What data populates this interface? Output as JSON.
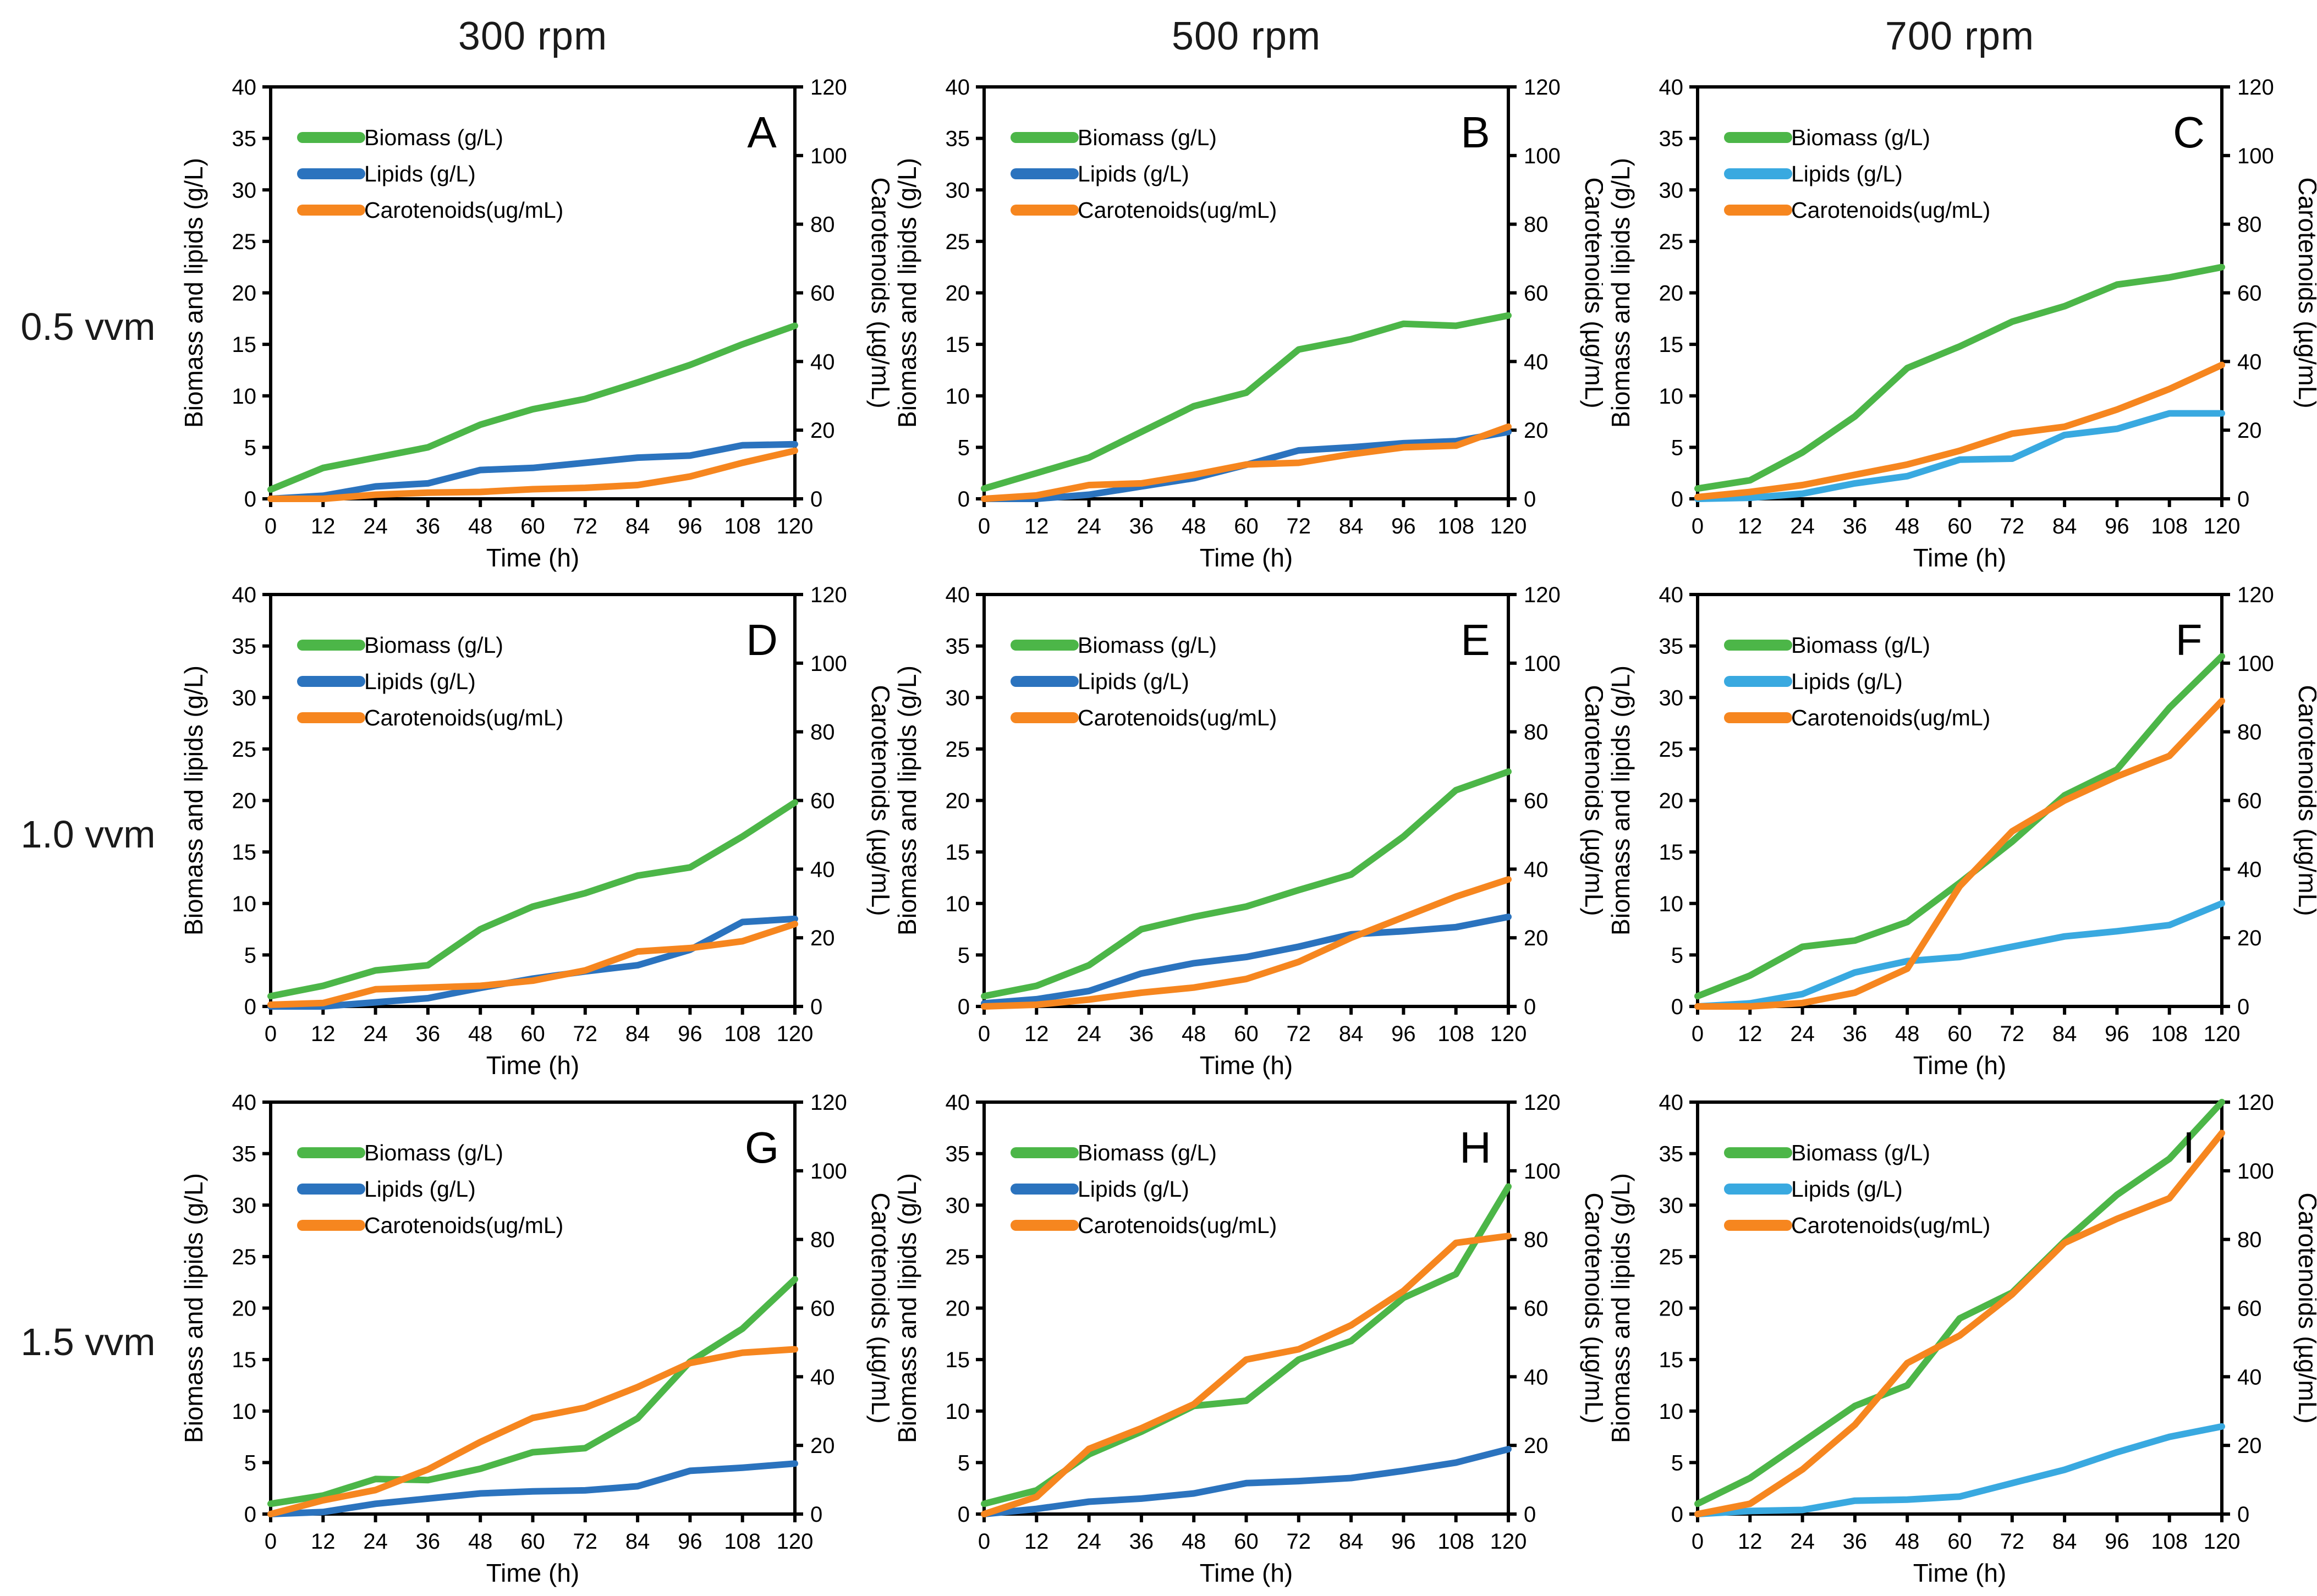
{
  "columns": [
    {
      "label": "300 rpm"
    },
    {
      "label": "500 rpm"
    },
    {
      "label": "700 rpm"
    }
  ],
  "rows": [
    {
      "label": "0.5 vvm"
    },
    {
      "label": "1.0 vvm"
    },
    {
      "label": "1.5 vvm"
    }
  ],
  "colors": {
    "green": "#4CB648",
    "blue": "#2B73BE",
    "lightblue": "#39A9E0",
    "orange": "#F6861F",
    "axis": "#000000"
  },
  "chart_data": {
    "type": "line",
    "x_label": "Time (h)",
    "y_left_label": "Biomass and  lipids (g/L)",
    "y_right_label": "Carotenoids (µg/mL)",
    "x": [
      0,
      12,
      24,
      36,
      48,
      60,
      72,
      84,
      96,
      108,
      120
    ],
    "x_ticks": [
      0,
      12,
      24,
      36,
      48,
      60,
      72,
      84,
      96,
      108,
      120
    ],
    "y_left_ticks": [
      0,
      5,
      10,
      15,
      20,
      25,
      30,
      35,
      40
    ],
    "y_right_ticks": [
      0,
      20,
      40,
      60,
      80,
      100,
      120
    ],
    "xlim": [
      0,
      120
    ],
    "ylim_left": [
      0,
      40
    ],
    "ylim_right": [
      0,
      120
    ],
    "grid": false,
    "legend_position": "top-left-inside",
    "panels": [
      {
        "panel": "A",
        "rpm": "300 rpm",
        "vvm": "0.5 vvm",
        "series": [
          {
            "name": "Biomass (g/L)",
            "axis": "left",
            "color": "green",
            "values": [
              0.9,
              3,
              4,
              5,
              7.2,
              8.7,
              9.7,
              11.3,
              13,
              15,
              16.8
            ]
          },
          {
            "name": "Lipids (g/L)",
            "axis": "left",
            "color": "blue",
            "values": [
              0,
              0.3,
              1.2,
              1.5,
              2.8,
              3,
              3.5,
              4,
              4.2,
              5.2,
              5.3
            ]
          },
          {
            "name": "Carotenoids(ug/mL)",
            "axis": "right",
            "color": "orange",
            "values": [
              0,
              0,
              1.2,
              1.8,
              2,
              2.8,
              3.2,
              4,
              6.5,
              10.5,
              14
            ]
          }
        ]
      },
      {
        "panel": "B",
        "rpm": "500 rpm",
        "vvm": "0.5 vvm",
        "series": [
          {
            "name": "Biomass (g/L)",
            "axis": "left",
            "color": "green",
            "values": [
              1,
              2.5,
              4,
              6.5,
              9,
              10.3,
              14.5,
              15.5,
              17,
              16.8,
              17.8
            ]
          },
          {
            "name": "Lipids (g/L)",
            "axis": "left",
            "color": "blue",
            "values": [
              0,
              0,
              0.4,
              1.2,
              2,
              3.3,
              4.7,
              5,
              5.4,
              5.6,
              6.5
            ]
          },
          {
            "name": "Carotenoids(ug/mL)",
            "axis": "right",
            "color": "orange",
            "values": [
              0,
              1,
              4,
              4.5,
              7,
              10,
              10.5,
              13,
              15,
              15.5,
              21
            ]
          }
        ]
      },
      {
        "panel": "C",
        "rpm": "700 rpm",
        "vvm": "0.5 vvm",
        "series": [
          {
            "name": "Biomass (g/L)",
            "axis": "left",
            "color": "green",
            "values": [
              1,
              1.8,
              4.5,
              8,
              12.7,
              14.8,
              17.2,
              18.7,
              20.8,
              21.5,
              22.5
            ]
          },
          {
            "name": "Lipids (g/L)",
            "axis": "left",
            "color": "lightblue",
            "values": [
              0,
              0.1,
              0.5,
              1.5,
              2.2,
              3.8,
              3.9,
              6.2,
              6.8,
              8.3,
              8.3
            ]
          },
          {
            "name": "Carotenoids(ug/mL)",
            "axis": "right",
            "color": "orange",
            "values": [
              0.5,
              2,
              4,
              7,
              10,
              14,
              19,
              21,
              26,
              32,
              39
            ]
          }
        ]
      },
      {
        "panel": "D",
        "rpm": "300 rpm",
        "vvm": "1.0 vvm",
        "series": [
          {
            "name": "Biomass (g/L)",
            "axis": "left",
            "color": "green",
            "values": [
              1,
              2,
              3.5,
              4,
              7.5,
              9.7,
              11,
              12.7,
              13.5,
              16.5,
              19.8
            ]
          },
          {
            "name": "Lipids (g/L)",
            "axis": "left",
            "color": "blue",
            "values": [
              0,
              0,
              0.4,
              0.8,
              1.8,
              2.7,
              3.4,
              4,
              5.5,
              8.2,
              8.5
            ]
          },
          {
            "name": "Carotenoids(ug/mL)",
            "axis": "right",
            "color": "orange",
            "values": [
              0.5,
              1,
              5,
              5.5,
              6,
              7.5,
              10.5,
              16,
              17,
              19,
              24
            ]
          }
        ]
      },
      {
        "panel": "E",
        "rpm": "500 rpm",
        "vvm": "1.0 vvm",
        "series": [
          {
            "name": "Biomass (g/L)",
            "axis": "left",
            "color": "green",
            "values": [
              1,
              2,
              4,
              7.5,
              8.7,
              9.7,
              11.3,
              12.8,
              16.5,
              21,
              22.8
            ]
          },
          {
            "name": "Lipids (g/L)",
            "axis": "left",
            "color": "blue",
            "values": [
              0.3,
              0.7,
              1.5,
              3.2,
              4.2,
              4.8,
              5.8,
              7,
              7.3,
              7.7,
              8.7
            ]
          },
          {
            "name": "Carotenoids(ug/mL)",
            "axis": "right",
            "color": "orange",
            "values": [
              0,
              0.5,
              2,
              4,
              5.5,
              8,
              13,
              20,
              26,
              32,
              37
            ]
          }
        ]
      },
      {
        "panel": "F",
        "rpm": "700 rpm",
        "vvm": "1.0 vvm",
        "series": [
          {
            "name": "Biomass (g/L)",
            "axis": "left",
            "color": "green",
            "values": [
              1,
              3,
              5.8,
              6.4,
              8.2,
              12,
              16,
              20.5,
              23,
              29,
              34
            ]
          },
          {
            "name": "Lipids (g/L)",
            "axis": "left",
            "color": "lightblue",
            "values": [
              0,
              0.3,
              1.2,
              3.3,
              4.4,
              4.8,
              5.8,
              6.8,
              7.3,
              7.9,
              10
            ]
          },
          {
            "name": "Carotenoids(ug/mL)",
            "axis": "right",
            "color": "orange",
            "values": [
              0,
              0,
              1,
              4,
              11,
              35,
              51,
              60,
              67,
              73,
              89
            ]
          }
        ]
      },
      {
        "panel": "G",
        "rpm": "300 rpm",
        "vvm": "1.5 vvm",
        "series": [
          {
            "name": "Biomass (g/L)",
            "axis": "left",
            "color": "green",
            "values": [
              1,
              1.8,
              3.4,
              3.3,
              4.4,
              6,
              6.4,
              9.3,
              14.8,
              18,
              22.8
            ]
          },
          {
            "name": "Lipids (g/L)",
            "axis": "left",
            "color": "blue",
            "values": [
              0,
              0.2,
              1,
              1.5,
              2,
              2.2,
              2.3,
              2.7,
              4.2,
              4.5,
              4.9
            ]
          },
          {
            "name": "Carotenoids(ug/mL)",
            "axis": "right",
            "color": "orange",
            "values": [
              0,
              4,
              7,
              13,
              21,
              28,
              31,
              37,
              44,
              47,
              48
            ]
          }
        ]
      },
      {
        "panel": "H",
        "rpm": "500 rpm",
        "vvm": "1.5 vvm",
        "series": [
          {
            "name": "Biomass (g/L)",
            "axis": "left",
            "color": "green",
            "values": [
              1,
              2.3,
              5.8,
              8,
              10.5,
              11,
              15,
              16.8,
              21,
              23.3,
              31.8
            ]
          },
          {
            "name": "Lipids (g/L)",
            "axis": "left",
            "color": "blue",
            "values": [
              0,
              0.5,
              1.2,
              1.5,
              2,
              3,
              3.2,
              3.5,
              4.2,
              5,
              6.3
            ]
          },
          {
            "name": "Carotenoids(ug/mL)",
            "axis": "right",
            "color": "orange",
            "values": [
              0,
              5,
              19,
              25,
              32,
              45,
              48,
              55,
              65,
              79,
              81
            ]
          }
        ]
      },
      {
        "panel": "I",
        "rpm": "700 rpm",
        "vvm": "1.5 vvm",
        "series": [
          {
            "name": "Biomass (g/L)",
            "axis": "left",
            "color": "green",
            "values": [
              1,
              3.5,
              7,
              10.5,
              12.5,
              19,
              21.5,
              26.5,
              31,
              34.5,
              40
            ]
          },
          {
            "name": "Lipids (g/L)",
            "axis": "left",
            "color": "lightblue",
            "values": [
              0,
              0.3,
              0.4,
              1.3,
              1.4,
              1.7,
              3,
              4.3,
              6,
              7.5,
              8.5
            ]
          },
          {
            "name": "Carotenoids(ug/mL)",
            "axis": "right",
            "color": "orange",
            "values": [
              0,
              3,
              13,
              26,
              44,
              52,
              64,
              79,
              86,
              92,
              111
            ]
          }
        ]
      }
    ]
  }
}
